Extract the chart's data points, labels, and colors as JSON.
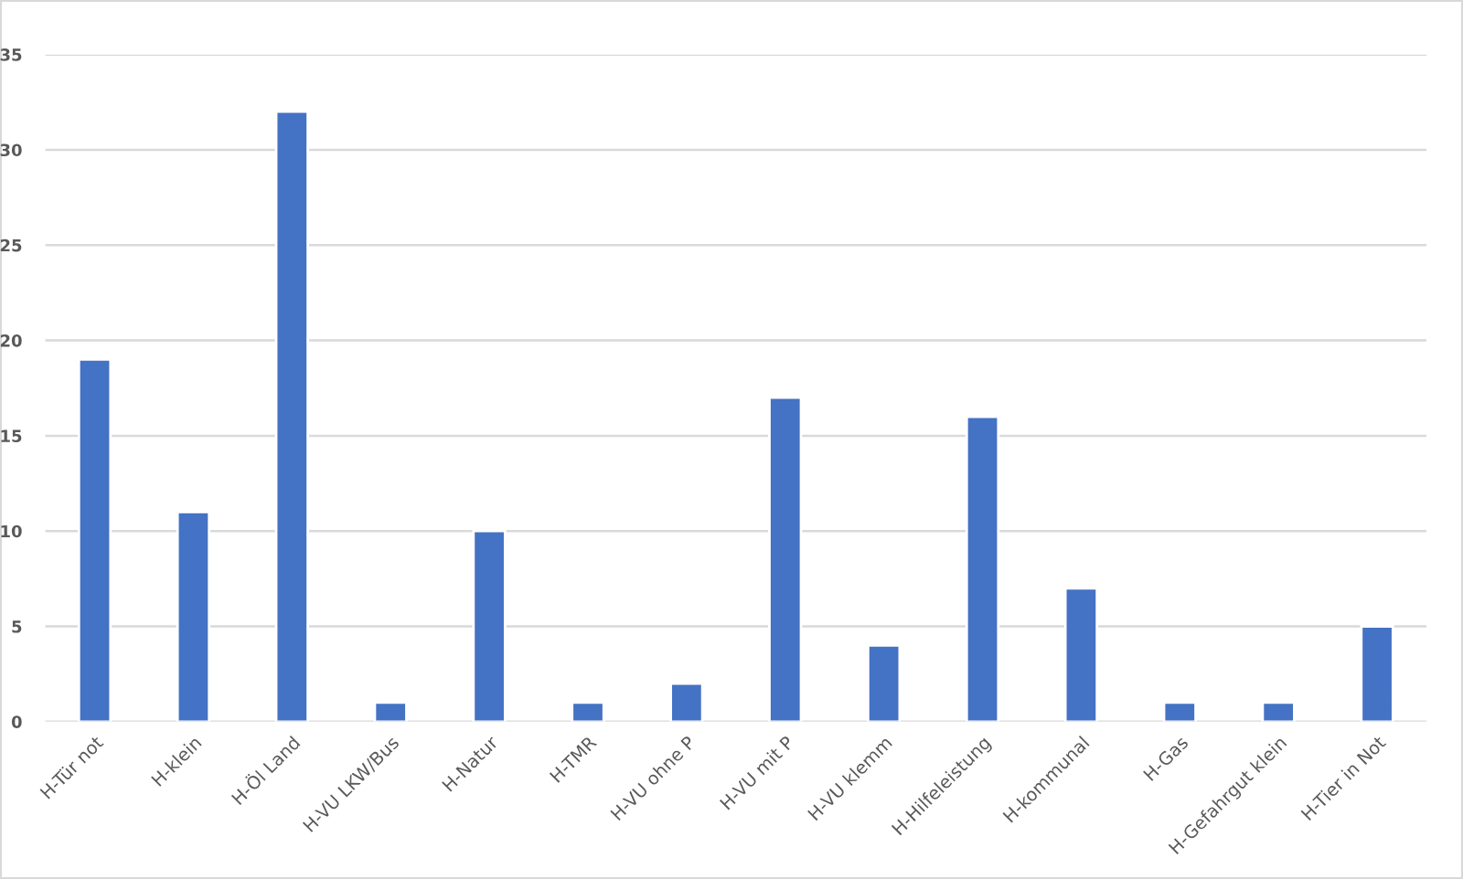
{
  "chart_data": {
    "type": "bar",
    "categories": [
      "H-Tür not",
      "H-klein",
      "H-Öl Land",
      "H-VU LKW/Bus",
      "H-Natur",
      "H-TMR",
      "H-VU ohne P",
      "H-VU mit P",
      "H-VU klemm",
      "H-Hilfeleistung",
      "H-kommunal",
      "H-Gas",
      "H-Gefahrgut klein",
      "H-Tier in Not"
    ],
    "values": [
      19,
      11,
      32,
      1,
      10,
      1,
      2,
      17,
      4,
      16,
      7,
      1,
      1,
      5
    ],
    "color": "#4472c4",
    "ylim": [
      0,
      35
    ],
    "yticks": [
      0,
      5,
      10,
      15,
      20,
      25,
      30,
      35
    ],
    "grid": "y"
  }
}
